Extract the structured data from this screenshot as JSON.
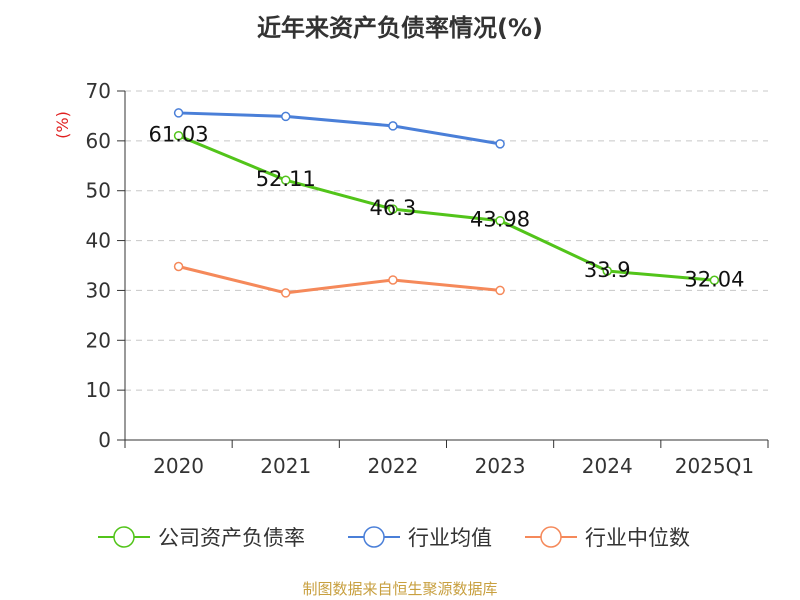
{
  "chart_data": {
    "type": "line",
    "title": "近年来资产负债率情况(%)",
    "ylabel": "(%)",
    "xlabel": "",
    "categories": [
      "2020",
      "2021",
      "2022",
      "2023",
      "2024",
      "2025Q1"
    ],
    "ylim": [
      0,
      70
    ],
    "yticks": [
      0,
      10,
      20,
      30,
      40,
      50,
      60,
      70
    ],
    "grid": true,
    "legend_position": "bottom",
    "series": [
      {
        "name": "公司资产负债率",
        "color": "#52c41a",
        "values": [
          61.03,
          52.11,
          46.3,
          43.98,
          33.9,
          32.04
        ],
        "data_labels": [
          "61.03",
          "52.11",
          "46.3",
          "43.98",
          "33.9",
          "32.04"
        ]
      },
      {
        "name": "行业均值",
        "color": "#4a7fd8",
        "values": [
          65.6,
          64.9,
          63.0,
          59.4,
          null,
          null
        ]
      },
      {
        "name": "行业中位数",
        "color": "#f5895a",
        "values": [
          34.8,
          29.5,
          32.1,
          30.0,
          null,
          null
        ]
      }
    ],
    "source": "制图数据来自恒生聚源数据库"
  }
}
